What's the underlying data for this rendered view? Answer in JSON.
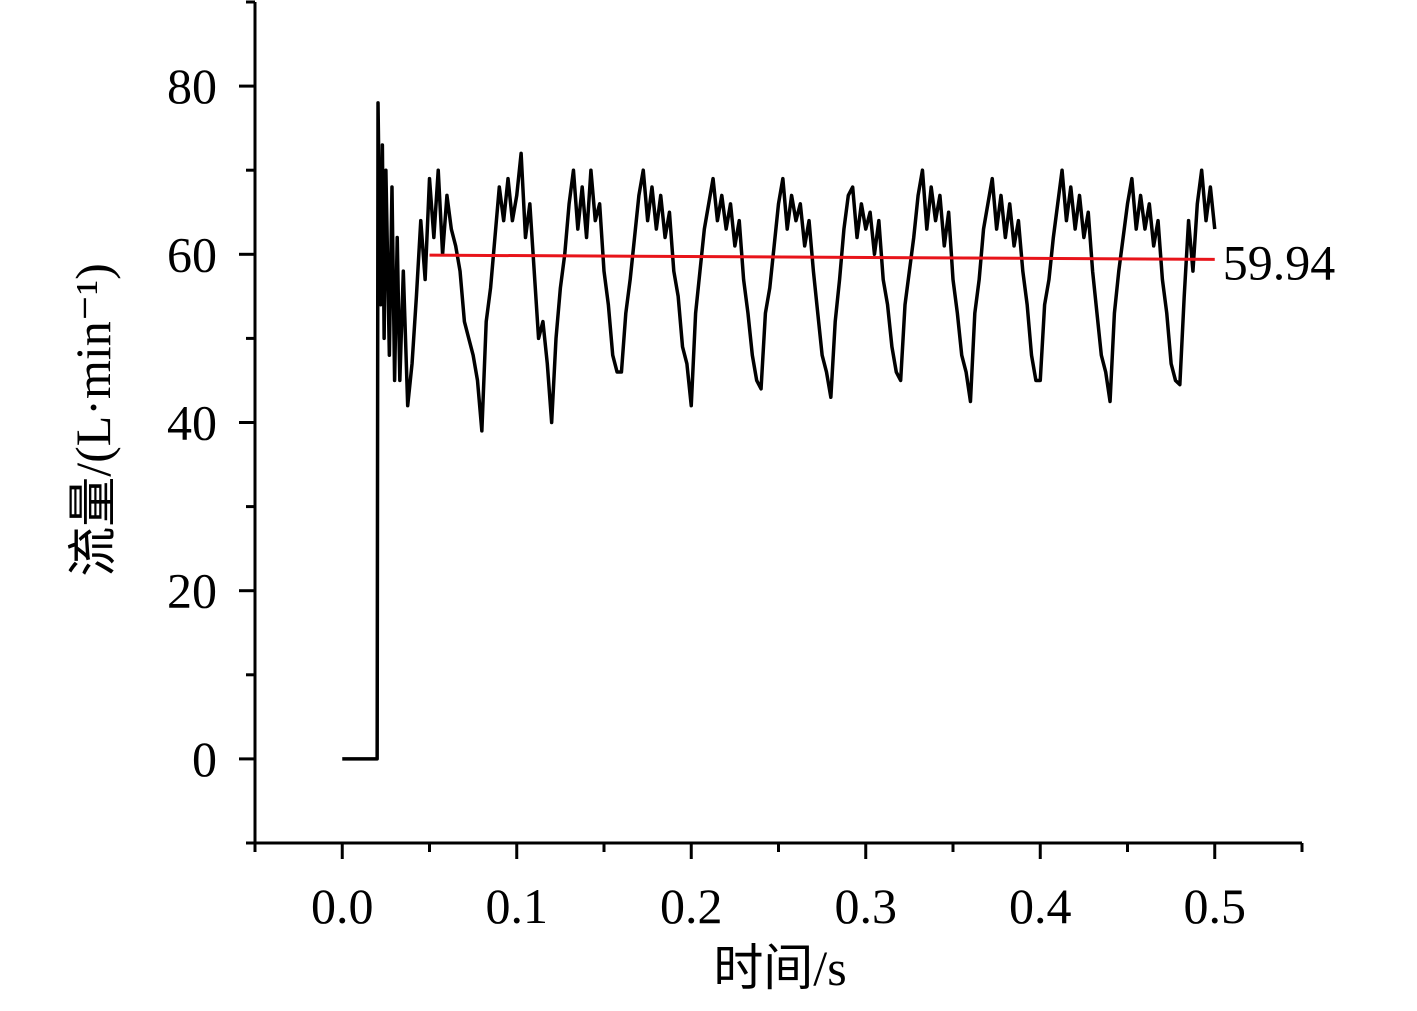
{
  "chart_data": {
    "type": "line",
    "x_label": "时间/s",
    "y_label": "流量/(L·min⁻¹)",
    "xlim": [
      -0.05,
      0.55
    ],
    "ylim": [
      -10,
      90
    ],
    "xticks": [
      {
        "value": 0,
        "label": "0.0"
      },
      0.1,
      0.2,
      0.3,
      0.4,
      0.5
    ],
    "xminorticks": [
      -0.05,
      0.05,
      0.15,
      0.25,
      0.35,
      0.45,
      0.55
    ],
    "yticks": [
      0,
      20,
      40,
      60,
      80
    ],
    "yminorticks": [
      -10,
      10,
      30,
      50,
      70,
      90
    ],
    "series": [
      {
        "color": "#000000",
        "x": [
          0,
          0.02,
          0.0205,
          0.022,
          0.023,
          0.024,
          0.025,
          0.027,
          0.0285,
          0.03,
          0.0315,
          0.033,
          0.035,
          0.0375,
          0.04,
          0.0425,
          0.045,
          0.0475,
          0.05,
          0.0525,
          0.055,
          0.0575,
          0.06,
          0.0625,
          0.065,
          0.0675,
          0.07,
          0.0725,
          0.075,
          0.0775,
          0.08,
          0.0825,
          0.085,
          0.0875,
          0.09,
          0.0925,
          0.095,
          0.0975,
          0.1,
          0.1025,
          0.105,
          0.1075,
          0.11,
          0.1125,
          0.115,
          0.1175,
          0.12,
          0.1225,
          0.125,
          0.1275,
          0.13,
          0.1325,
          0.135,
          0.1375,
          0.14,
          0.1425,
          0.145,
          0.1475,
          0.15,
          0.1525,
          0.155,
          0.1575,
          0.16,
          0.1625,
          0.165,
          0.1675,
          0.17,
          0.1725,
          0.175,
          0.1775,
          0.18,
          0.1825,
          0.185,
          0.1875,
          0.19,
          0.1925,
          0.195,
          0.1975,
          0.2,
          0.2025,
          0.205,
          0.2075,
          0.21,
          0.2125,
          0.215,
          0.2175,
          0.22,
          0.2225,
          0.225,
          0.2275,
          0.23,
          0.2325,
          0.235,
          0.2375,
          0.24,
          0.2425,
          0.245,
          0.2475,
          0.25,
          0.2525,
          0.255,
          0.2575,
          0.26,
          0.2625,
          0.265,
          0.2675,
          0.27,
          0.2725,
          0.275,
          0.2775,
          0.28,
          0.2825,
          0.285,
          0.2875,
          0.29,
          0.2925,
          0.295,
          0.2975,
          0.3,
          0.3025,
          0.305,
          0.3075,
          0.31,
          0.3125,
          0.315,
          0.3175,
          0.32,
          0.3225,
          0.325,
          0.3275,
          0.33,
          0.3325,
          0.335,
          0.3375,
          0.34,
          0.3425,
          0.345,
          0.3475,
          0.35,
          0.3525,
          0.355,
          0.3575,
          0.36,
          0.3625,
          0.365,
          0.3675,
          0.37,
          0.3725,
          0.375,
          0.3775,
          0.38,
          0.3825,
          0.385,
          0.3875,
          0.39,
          0.3925,
          0.395,
          0.3975,
          0.4,
          0.4025,
          0.405,
          0.4075,
          0.41,
          0.4125,
          0.415,
          0.4175,
          0.42,
          0.4225,
          0.425,
          0.4275,
          0.43,
          0.4325,
          0.435,
          0.4375,
          0.44,
          0.4425,
          0.445,
          0.4475,
          0.45,
          0.4525,
          0.455,
          0.4575,
          0.46,
          0.4625,
          0.465,
          0.4675,
          0.47,
          0.4725,
          0.475,
          0.4775,
          0.48,
          0.4825,
          0.485,
          0.4875,
          0.49,
          0.4925,
          0.495,
          0.4975,
          0.5
        ],
        "values": [
          0,
          0,
          78,
          54,
          73,
          50,
          70,
          48,
          68,
          45,
          62,
          45,
          58,
          42,
          47,
          55,
          64,
          57,
          69,
          62,
          70,
          60,
          67,
          63,
          61,
          58,
          52,
          50,
          48,
          45,
          39,
          52,
          56,
          62,
          68,
          64,
          69,
          64,
          67,
          72,
          62,
          66,
          58,
          50,
          52,
          47,
          40,
          50,
          56,
          60,
          66,
          70,
          63,
          68,
          62,
          70,
          64,
          66,
          58,
          54,
          48,
          46,
          46,
          53,
          57,
          62,
          67,
          70,
          64,
          68,
          63,
          67,
          62,
          65,
          58,
          55,
          49,
          47,
          42,
          53,
          58,
          63,
          66,
          69,
          64,
          67,
          63,
          66,
          61,
          64,
          57,
          53,
          48,
          45,
          44,
          53,
          56,
          61,
          66,
          69,
          63,
          67,
          64,
          66,
          61,
          64,
          58,
          53,
          48,
          46,
          43,
          52,
          57,
          63,
          67,
          68,
          62,
          66,
          63,
          65,
          60,
          64,
          57,
          54,
          49,
          46,
          45,
          54,
          58,
          62,
          67,
          70,
          63,
          68,
          64,
          67,
          61,
          65,
          57,
          53,
          48,
          46,
          42.5,
          53,
          57,
          63,
          66,
          69,
          63,
          67,
          62,
          66,
          61,
          64,
          58,
          54,
          48,
          45,
          45,
          54,
          57,
          62,
          66,
          70,
          64,
          68,
          63,
          67,
          62,
          65,
          58,
          53,
          48,
          46,
          42.5,
          53,
          58,
          62,
          66,
          69,
          63,
          67,
          63,
          66,
          61,
          64,
          57,
          53,
          47,
          45,
          44.5,
          55,
          64,
          58,
          66,
          70,
          64,
          68,
          63
        ]
      },
      {
        "color": "#e8141a",
        "x": [
          0.05,
          0.5
        ],
        "values": [
          59.9,
          59.4
        ]
      }
    ],
    "annotation": "59.94"
  }
}
